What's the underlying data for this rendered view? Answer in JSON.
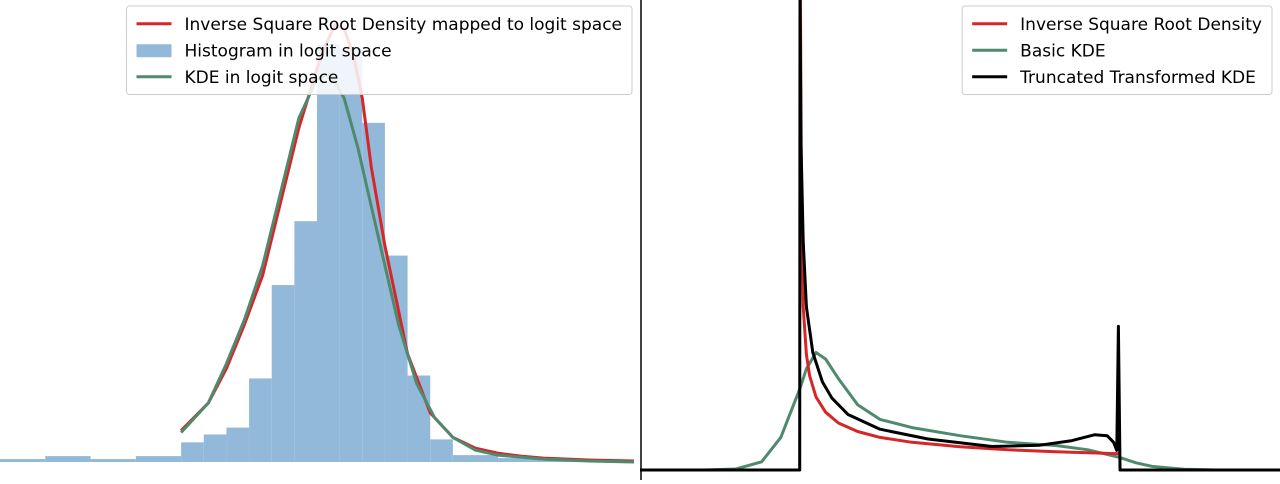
{
  "chart_data": [
    {
      "type": "line",
      "title": "",
      "xlabel": "",
      "ylabel": "",
      "axes_visible": false,
      "grid": false,
      "legend_position": "top-right",
      "xlim": [
        -7,
        7
      ],
      "ylim": [
        0,
        0.47
      ],
      "histogram": {
        "name": "Histogram in logit space",
        "color": "#92b9da",
        "bin_edges": [
          -8,
          -7,
          -6,
          -5,
          -4,
          -3,
          -2.5,
          -2,
          -1.5,
          -1,
          -0.5,
          0,
          0.5,
          1,
          1.5,
          2,
          2.5,
          3,
          4,
          5,
          6,
          7
        ],
        "values": [
          0,
          0.003,
          0.006,
          0.003,
          0.006,
          0.02,
          0.028,
          0.035,
          0.085,
          0.18,
          0.245,
          0.425,
          0.42,
          0.345,
          0.21,
          0.088,
          0.023,
          0.007,
          0.004,
          0.003,
          0.001
        ]
      },
      "series": [
        {
          "name": "Inverse Square Root Density mapped to logit space",
          "color": "#d62628",
          "x": [
            -3.0,
            -2.4,
            -2.0,
            -1.6,
            -1.2,
            -0.8,
            -0.4,
            0.0,
            0.2,
            0.4,
            0.6,
            0.8,
            1.0,
            1.2,
            1.5,
            2.0,
            2.5,
            3.0,
            3.5,
            4.0,
            4.5,
            5.0,
            6.0,
            7.0
          ],
          "y": [
            0.032,
            0.06,
            0.095,
            0.14,
            0.19,
            0.265,
            0.34,
            0.4,
            0.425,
            0.445,
            0.44,
            0.415,
            0.37,
            0.3,
            0.22,
            0.11,
            0.05,
            0.025,
            0.014,
            0.009,
            0.006,
            0.004,
            0.002,
            0.001
          ]
        },
        {
          "name": "KDE in logit space",
          "color": "#4f8a6e",
          "x": [
            -3.0,
            -2.4,
            -2.0,
            -1.6,
            -1.2,
            -0.8,
            -0.4,
            0.0,
            0.3,
            0.6,
            0.9,
            1.2,
            1.5,
            1.8,
            2.2,
            2.6,
            3.0,
            3.5,
            4.0,
            5.0,
            6.0,
            7.0
          ],
          "y": [
            0.03,
            0.06,
            0.1,
            0.145,
            0.2,
            0.275,
            0.35,
            0.39,
            0.395,
            0.37,
            0.32,
            0.26,
            0.2,
            0.14,
            0.08,
            0.045,
            0.025,
            0.012,
            0.007,
            0.003,
            0.001,
            0.0
          ]
        }
      ]
    },
    {
      "type": "line",
      "title": "",
      "xlabel": "",
      "ylabel": "",
      "axes_visible": false,
      "grid": false,
      "legend_position": "top-right",
      "xlim": [
        -0.5,
        1.5
      ],
      "ylim": [
        0,
        14.4
      ],
      "series": [
        {
          "name": "Inverse Square Root Density",
          "color": "#d62628",
          "x": [
            0.001,
            0.005,
            0.01,
            0.02,
            0.03,
            0.05,
            0.08,
            0.12,
            0.18,
            0.25,
            0.35,
            0.5,
            0.65,
            0.8,
            0.9,
            1.0
          ],
          "y": [
            15.8,
            7.07,
            5.0,
            3.54,
            2.89,
            2.24,
            1.77,
            1.44,
            1.18,
            1.0,
            0.85,
            0.71,
            0.62,
            0.56,
            0.53,
            0.5
          ]
        },
        {
          "name": "Basic KDE",
          "color": "#4f8a6e",
          "x": [
            -0.5,
            -0.3,
            -0.2,
            -0.12,
            -0.06,
            -0.02,
            0.0,
            0.02,
            0.05,
            0.08,
            0.12,
            0.18,
            0.25,
            0.35,
            0.5,
            0.65,
            0.8,
            0.9,
            0.95,
            1.0,
            1.05,
            1.1,
            1.2,
            1.3,
            1.5
          ],
          "y": [
            0.0,
            0.0,
            0.03,
            0.25,
            1.0,
            2.0,
            2.5,
            3.1,
            3.6,
            3.4,
            2.8,
            2.0,
            1.55,
            1.3,
            1.05,
            0.85,
            0.75,
            0.62,
            0.5,
            0.38,
            0.22,
            0.11,
            0.02,
            0.0,
            0.0
          ]
        },
        {
          "name": "Truncated Transformed KDE",
          "color": "#000000",
          "x": [
            -0.5,
            -0.001,
            0.0,
            0.003,
            0.01,
            0.02,
            0.04,
            0.07,
            0.1,
            0.15,
            0.25,
            0.4,
            0.6,
            0.75,
            0.85,
            0.92,
            0.96,
            0.98,
            0.99,
            0.995,
            1.0,
            1.0001,
            1.5
          ],
          "y": [
            0.0,
            0.0,
            14.4,
            10.0,
            7.0,
            5.0,
            3.6,
            2.7,
            2.2,
            1.7,
            1.25,
            0.95,
            0.72,
            0.76,
            0.9,
            1.08,
            1.05,
            0.85,
            0.6,
            4.4,
            0.1,
            0.0,
            0.0
          ]
        }
      ]
    }
  ]
}
